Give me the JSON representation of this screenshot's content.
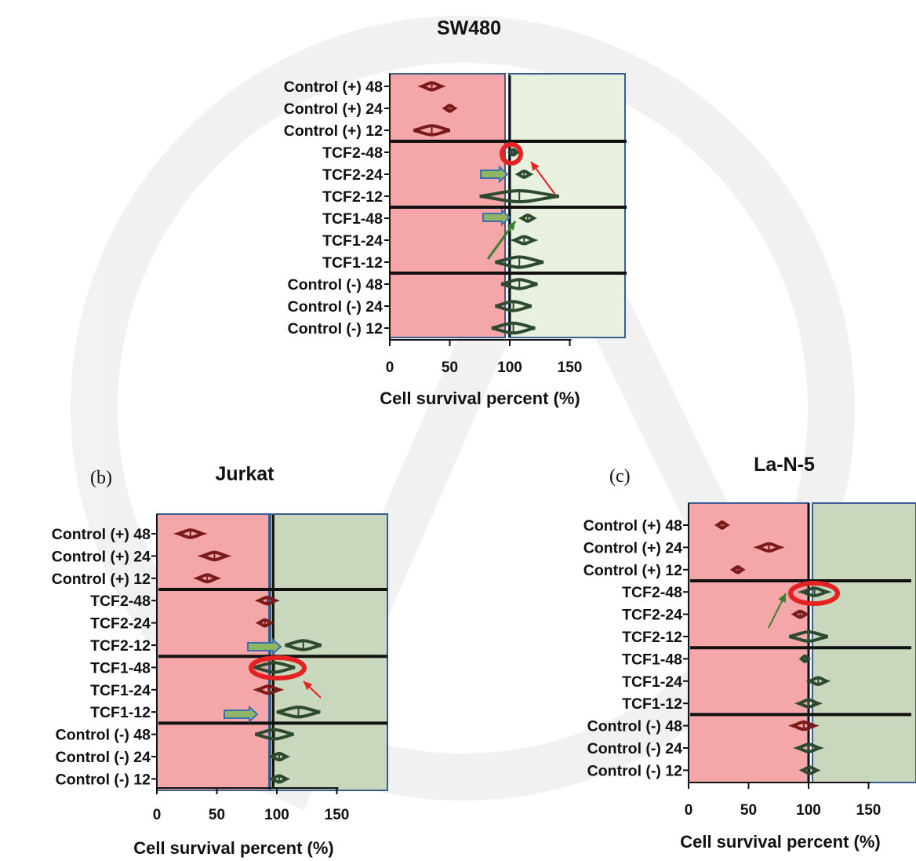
{
  "colors": {
    "red_zone": "#f4a6a8",
    "green_zone_a": "#e8f1e0",
    "green_zone_bc": "#c9d7bd",
    "zone_border": "#3a5f8f",
    "violin_red": "#7a1a1a",
    "violin_green": "#2e4a2e",
    "highlight_circle": "#e52222",
    "arrow_red": "#e52222",
    "arrow_green": "#3f7d2e",
    "block_arrow_fill": "#8fb464",
    "block_arrow_stroke": "#3a6fb0"
  },
  "chart_data": [
    {
      "type": "violin",
      "panel_label": "",
      "title": "SW480",
      "xlabel": "Cell survival percent (%)",
      "ylabel": "",
      "xlim": [
        0,
        200
      ],
      "xticks": [
        0,
        50,
        100,
        150
      ],
      "categories": [
        "Control (+) 48",
        "Control (+) 24",
        "Control (+) 12",
        "TCF2-48",
        "TCF2-24",
        "TCF2-12",
        "TCF1-48",
        "TCF1-24",
        "TCF1-12",
        "Control (-) 48",
        "Control (-) 24",
        "Control (-) 12"
      ],
      "medians": [
        35,
        50,
        35,
        103,
        112,
        108,
        115,
        112,
        108,
        108,
        103,
        103
      ],
      "spread": [
        8,
        4,
        15,
        3,
        5,
        33,
        5,
        8,
        20,
        15,
        15,
        18
      ],
      "reference_x": 100,
      "group_separators_after": [
        2,
        5,
        8
      ]
    },
    {
      "type": "violin",
      "panel_label": "(b)",
      "title": "Jurkat",
      "xlabel": "Cell survival percent (%)",
      "ylabel": "",
      "xlim": [
        0,
        200
      ],
      "xticks": [
        0,
        50,
        100,
        150
      ],
      "categories": [
        "Control (+) 48",
        "Control (+) 24",
        "Control (+) 12",
        "TCF2-48",
        "TCF2-24",
        "TCF2-12",
        "TCF1-48",
        "TCF1-24",
        "TCF1-12",
        "Control (-) 48",
        "Control (-) 24",
        "Control (-) 12"
      ],
      "medians": [
        28,
        48,
        42,
        92,
        90,
        122,
        98,
        93,
        118,
        98,
        102,
        102
      ],
      "spread": [
        10,
        10,
        8,
        7,
        5,
        15,
        17,
        9,
        18,
        16,
        6,
        6
      ],
      "reference_x": 97,
      "group_separators_after": [
        2,
        5,
        8
      ]
    },
    {
      "type": "violin",
      "panel_label": "(c)",
      "title": "La-N-5",
      "xlabel": "Cell survival percent (%)",
      "ylabel": "",
      "xlim": [
        0,
        200
      ],
      "xticks": [
        0,
        50,
        100,
        150
      ],
      "categories": [
        "Control (+) 48",
        "Control (+) 24",
        "Control (+) 12",
        "TCF2-48",
        "TCF2-24",
        "TCF2-12",
        "TCF1-48",
        "TCF1-24",
        "TCF1-12",
        "Control (-) 48",
        "Control (-) 24",
        "Control (-) 12"
      ],
      "medians": [
        28,
        67,
        41,
        105,
        93,
        100,
        97,
        108,
        100,
        96,
        100,
        101
      ],
      "spread": [
        4,
        9,
        4,
        10,
        5,
        16,
        3,
        7,
        8,
        9,
        9,
        6
      ],
      "reference_x": 100,
      "group_separators_after": [
        2,
        5,
        8
      ]
    }
  ]
}
